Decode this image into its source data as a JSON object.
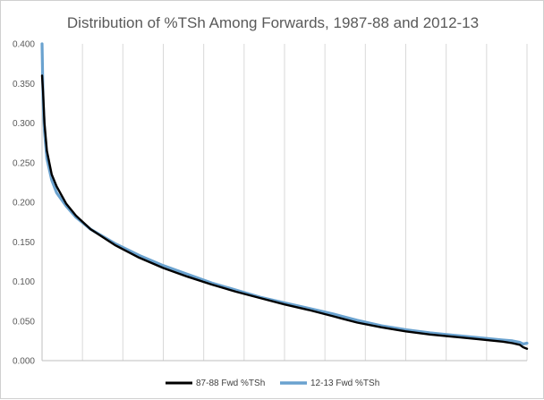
{
  "chart_data": {
    "type": "line",
    "title": "Distribution of %TSh Among Forwards, 1987-88 and 2012-13",
    "xlabel": "",
    "ylabel": "",
    "ylim": [
      0,
      0.4
    ],
    "yticks": [
      "0.000",
      "0.050",
      "0.100",
      "0.150",
      "0.200",
      "0.250",
      "0.300",
      "0.350",
      "0.400"
    ],
    "x_tick_labels": "none",
    "grid": "vertical gridlines",
    "legend_position": "bottom",
    "series": [
      {
        "name": "87-88 Fwd %TSh",
        "color": "#000000",
        "x": [
          0,
          0.2,
          0.5,
          1,
          2,
          3,
          5,
          7,
          10,
          15,
          20,
          25,
          30,
          35,
          40,
          45,
          50,
          55,
          60,
          65,
          70,
          75,
          80,
          85,
          90,
          95,
          97,
          98.5,
          99.2,
          100
        ],
        "values": [
          0.36,
          0.34,
          0.3,
          0.265,
          0.235,
          0.22,
          0.198,
          0.183,
          0.166,
          0.146,
          0.13,
          0.117,
          0.106,
          0.096,
          0.087,
          0.079,
          0.071,
          0.064,
          0.056,
          0.048,
          0.042,
          0.037,
          0.033,
          0.03,
          0.027,
          0.024,
          0.022,
          0.02,
          0.017,
          0.015
        ]
      },
      {
        "name": "12-13 Fwd %TSh",
        "color": "#6aa2cf",
        "x": [
          0,
          0.2,
          0.5,
          1,
          2,
          3,
          5,
          7,
          10,
          15,
          20,
          25,
          30,
          35,
          40,
          45,
          50,
          55,
          60,
          65,
          70,
          75,
          80,
          85,
          90,
          95,
          97,
          98.5,
          99.2,
          100
        ],
        "values": [
          0.4,
          0.33,
          0.29,
          0.255,
          0.228,
          0.212,
          0.195,
          0.181,
          0.166,
          0.148,
          0.133,
          0.12,
          0.109,
          0.098,
          0.089,
          0.08,
          0.073,
          0.066,
          0.059,
          0.051,
          0.044,
          0.039,
          0.035,
          0.032,
          0.029,
          0.026,
          0.025,
          0.023,
          0.021,
          0.022
        ]
      }
    ]
  }
}
